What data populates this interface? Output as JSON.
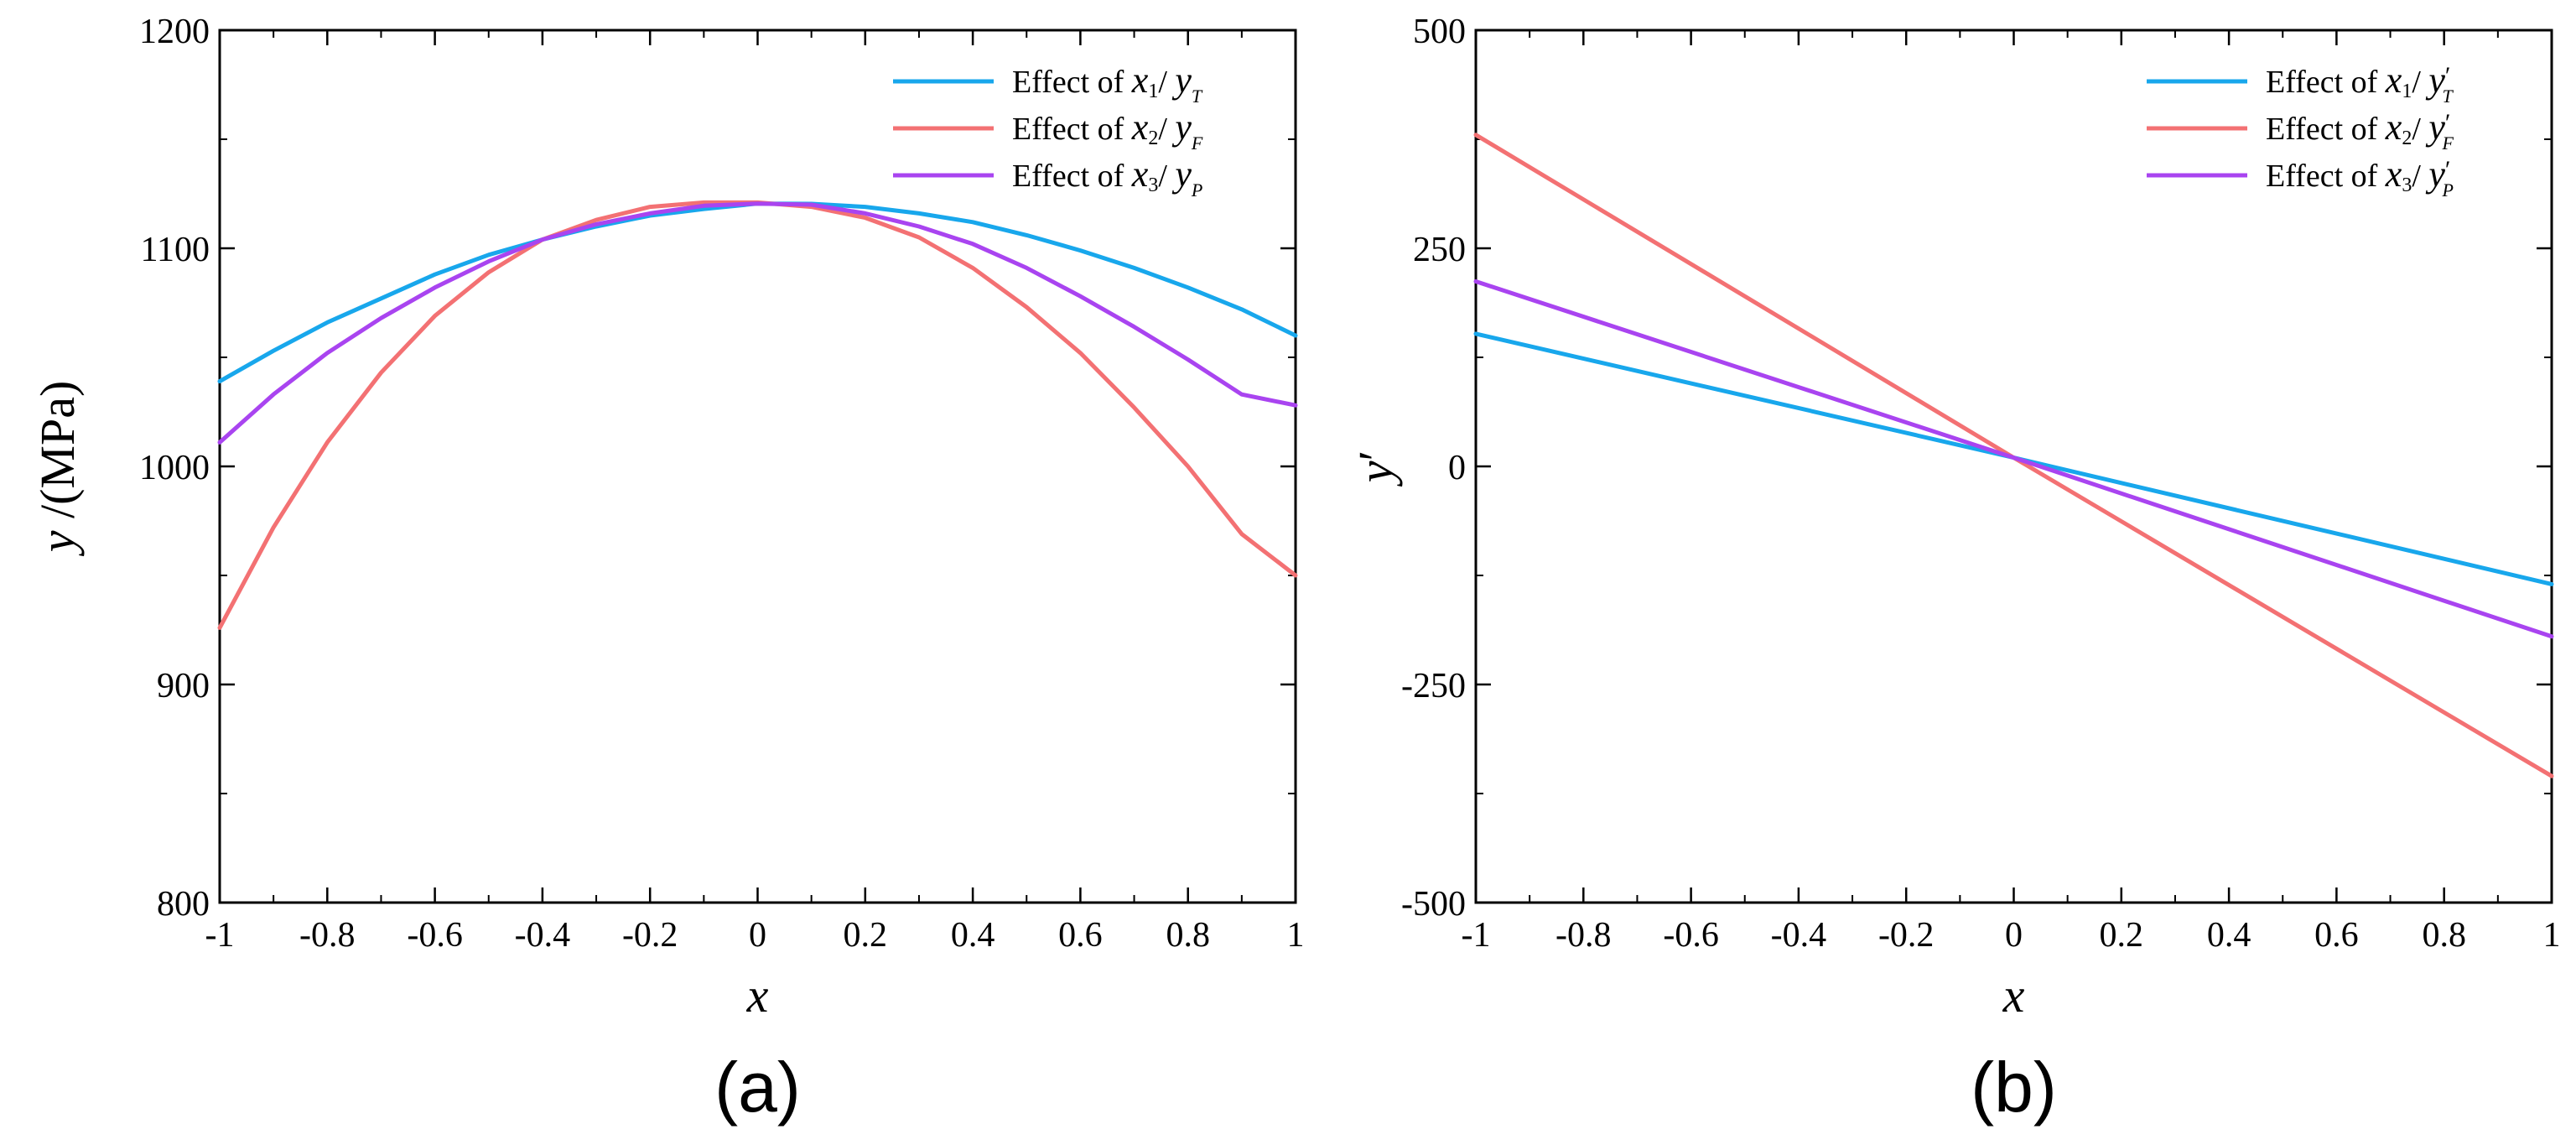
{
  "chart_data": [
    {
      "type": "line",
      "panel_label": "(a)",
      "xlabel": "x",
      "ylabel_var": "y",
      "ylabel_unit": " /(MPa)",
      "xlim": [
        -1,
        1
      ],
      "ylim": [
        800,
        1200
      ],
      "x_major_ticks": [
        -1,
        -0.8,
        -0.6,
        -0.4,
        -0.2,
        0,
        0.2,
        0.4,
        0.6,
        0.8,
        1
      ],
      "x_tick_labels": [
        "-1",
        "-0.8",
        "-0.6",
        "-0.4",
        "-0.2",
        "0",
        "0.2",
        "0.4",
        "0.6",
        "0.8",
        "1"
      ],
      "y_major_ticks": [
        800,
        900,
        1000,
        1100,
        1200
      ],
      "y_tick_labels": [
        "800",
        "900",
        "1000",
        "1100",
        "1200"
      ],
      "y_minor_step": 50,
      "x_minor_step": 0.1,
      "grid": false,
      "legend_position": "top-right",
      "series": [
        {
          "name": "Effect of x1/ yT",
          "legend": {
            "prefix": "Effect of ",
            "var": "x",
            "sub": "1",
            "slash": "/ ",
            "yvar": "y",
            "prime": "",
            "ysub": "T"
          },
          "color": "#18a7ec",
          "x": [
            -1,
            -0.9,
            -0.8,
            -0.7,
            -0.6,
            -0.5,
            -0.4,
            -0.3,
            -0.2,
            -0.1,
            0,
            0.1,
            0.2,
            0.3,
            0.4,
            0.5,
            0.6,
            0.7,
            0.8,
            0.9,
            1
          ],
          "y": [
            1039,
            1053,
            1066,
            1077,
            1088,
            1097,
            1104,
            1110,
            1115,
            1118,
            1120.5,
            1120.4,
            1119,
            1116,
            1112,
            1106,
            1099,
            1091,
            1082,
            1072,
            1060
          ]
        },
        {
          "name": "Effect of x2/ yF",
          "legend": {
            "prefix": "Effect of ",
            "var": "x",
            "sub": "2",
            "slash": "/ ",
            "yvar": "y",
            "prime": "",
            "ysub": "F"
          },
          "color": "#f37173",
          "x": [
            -1,
            -0.9,
            -0.8,
            -0.7,
            -0.6,
            -0.5,
            -0.4,
            -0.3,
            -0.2,
            -0.1,
            0,
            0.1,
            0.2,
            0.3,
            0.4,
            0.5,
            0.6,
            0.7,
            0.8,
            0.9,
            1
          ],
          "y": [
            926,
            972,
            1011,
            1043,
            1069,
            1089,
            1104,
            1113,
            1119,
            1121,
            1121,
            1119,
            1114,
            1105,
            1091,
            1073,
            1052,
            1027,
            1000,
            969,
            950
          ]
        },
        {
          "name": "Effect of x3/ yP",
          "legend": {
            "prefix": "Effect of ",
            "var": "x",
            "sub": "3",
            "slash": "/ ",
            "yvar": "y",
            "prime": "",
            "ysub": "P"
          },
          "color": "#a944f0",
          "x": [
            -1,
            -0.9,
            -0.8,
            -0.7,
            -0.6,
            -0.5,
            -0.4,
            -0.3,
            -0.2,
            -0.1,
            0,
            0.1,
            0.2,
            0.3,
            0.4,
            0.5,
            0.6,
            0.7,
            0.8,
            0.9,
            1
          ],
          "y": [
            1011,
            1033,
            1052,
            1068,
            1082,
            1094,
            1104,
            1111,
            1116,
            1119.5,
            1120.5,
            1120,
            1116,
            1110,
            1102,
            1091,
            1078,
            1064,
            1049,
            1033,
            1028
          ]
        }
      ]
    },
    {
      "type": "line",
      "panel_label": "(b)",
      "xlabel": "x",
      "ylabel_var": "y",
      "ylabel_prime": "′",
      "xlim": [
        -1,
        1
      ],
      "ylim": [
        -500,
        500
      ],
      "x_major_ticks": [
        -1,
        -0.8,
        -0.6,
        -0.4,
        -0.2,
        0,
        0.2,
        0.4,
        0.6,
        0.8,
        1
      ],
      "x_tick_labels": [
        "-1",
        "-0.8",
        "-0.6",
        "-0.4",
        "-0.2",
        "0",
        "0.2",
        "0.4",
        "0.6",
        "0.8",
        "1"
      ],
      "y_major_ticks": [
        -500,
        -250,
        0,
        250,
        500
      ],
      "y_tick_labels": [
        "-500",
        "-250",
        "0",
        "250",
        "500"
      ],
      "y_minor_step": 125,
      "x_minor_step": 0.1,
      "grid": false,
      "legend_position": "top-right",
      "series": [
        {
          "name": "Effect of x1/ y'T",
          "legend": {
            "prefix": "Effect of ",
            "var": "x",
            "sub": "1",
            "slash": "/ ",
            "yvar": "y",
            "prime": "′",
            "ysub": "T"
          },
          "color": "#18a7ec",
          "x": [
            -1,
            0,
            1
          ],
          "y": [
            152,
            10,
            -135
          ]
        },
        {
          "name": "Effect of x2/ y'F",
          "legend": {
            "prefix": "Effect of ",
            "var": "x",
            "sub": "2",
            "slash": "/ ",
            "yvar": "y",
            "prime": "′",
            "ysub": "F"
          },
          "color": "#f37173",
          "x": [
            -1,
            0,
            1
          ],
          "y": [
            380,
            10,
            -355
          ]
        },
        {
          "name": "Effect of x3/ y'P",
          "legend": {
            "prefix": "Effect of ",
            "var": "x",
            "sub": "3",
            "slash": "/ ",
            "yvar": "y",
            "prime": "′",
            "ysub": "P"
          },
          "color": "#a944f0",
          "x": [
            -1,
            0,
            1
          ],
          "y": [
            212,
            10,
            -195
          ]
        }
      ]
    }
  ]
}
